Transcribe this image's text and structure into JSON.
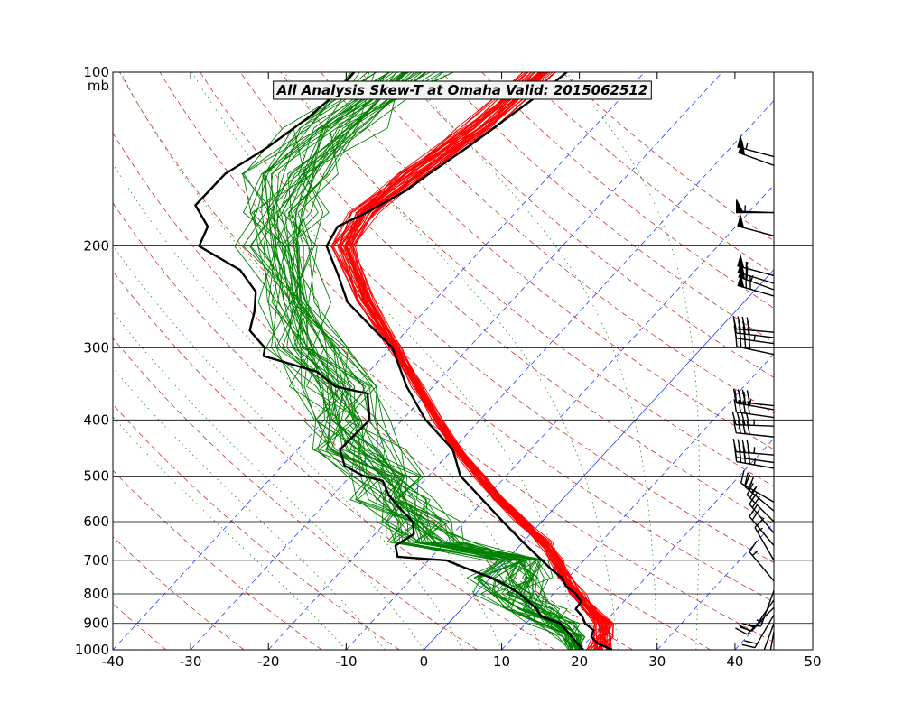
{
  "chart_data": {
    "type": "skew-t",
    "title": "All Analysis  Skew-T at Omaha   Valid: 2015062512",
    "pressure_unit_label": "mb",
    "x_ticks": [
      -40,
      -30,
      -20,
      -10,
      0,
      10,
      20,
      30,
      40,
      50
    ],
    "xlim": [
      -40,
      50
    ],
    "pressure_ticks": [
      100,
      200,
      300,
      400,
      500,
      600,
      700,
      800,
      900,
      1000
    ],
    "ylim_mb": [
      1000,
      100
    ],
    "isotherms_deg": [
      -40,
      -30,
      -20,
      -10,
      0,
      10,
      20,
      30,
      40
    ],
    "dry_adiabat_theta_K": [
      230,
      240,
      250,
      260,
      270,
      280,
      290,
      300,
      310,
      320,
      330,
      340,
      350,
      360,
      370,
      380,
      390,
      400,
      410,
      420,
      430
    ],
    "moist_adiabat_start_C": [
      -10,
      -5,
      0,
      5,
      10,
      15,
      20,
      25,
      30,
      35
    ],
    "series": [
      {
        "name": "analysis temperature (black)",
        "color": "#000000",
        "p": [
          1000,
          975,
          950,
          925,
          900,
          875,
          850,
          825,
          800,
          775,
          750,
          725,
          700,
          650,
          600,
          550,
          500,
          450,
          400,
          350,
          300,
          275,
          250,
          225,
          200,
          185,
          175,
          160,
          150,
          135,
          125,
          110,
          100
        ],
        "t": [
          24.2,
          21.6,
          20.0,
          19.5,
          17.6,
          16.4,
          14.7,
          14.5,
          12.9,
          10.7,
          9.2,
          6.8,
          4.6,
          -0.1,
          -5.0,
          -10.2,
          -15.9,
          -20.0,
          -27.0,
          -33.4,
          -39.8,
          -45.2,
          -51.0,
          -55.3,
          -60.3,
          -61.2,
          -59.1,
          -56.6,
          -55.7,
          -53.9,
          -52.8,
          -51.0,
          -50.0
        ]
      },
      {
        "name": "analysis dewpoint (black)",
        "color": "#000000",
        "p": [
          1000,
          975,
          950,
          925,
          900,
          875,
          850,
          800,
          775,
          750,
          720,
          700,
          690,
          660,
          630,
          600,
          560,
          540,
          510,
          500,
          480,
          450,
          400,
          360,
          350,
          330,
          310,
          300,
          280,
          260,
          240,
          220,
          200,
          185,
          170,
          150,
          135,
          120,
          110,
          100
        ],
        "t": [
          20.5,
          19.0,
          17.5,
          16.0,
          14.4,
          11.1,
          9.7,
          5.7,
          3.2,
          0.1,
          -4.6,
          -7.7,
          -14.4,
          -16.0,
          -15.0,
          -16.6,
          -20.8,
          -22.8,
          -25.3,
          -28.4,
          -32.0,
          -34.5,
          -34.2,
          -37.6,
          -42.6,
          -46.7,
          -55.4,
          -56.2,
          -60.2,
          -61.8,
          -64.0,
          -68.6,
          -76.7,
          -77.9,
          -82.0,
          -81.9,
          -79.6,
          -77.9,
          -77.2,
          -77.4
        ]
      },
      {
        "name": "ensemble temperature (red)",
        "color": "#ff0000",
        "members": 40,
        "p": [
          1000,
          950,
          900,
          850,
          800,
          750,
          700,
          650,
          600,
          550,
          500,
          450,
          400,
          350,
          300,
          250,
          200,
          175,
          150,
          125,
          100
        ],
        "t_mean": [
          22.5,
          21.5,
          20.0,
          16.5,
          13.0,
          9.5,
          6.5,
          2.5,
          -2.5,
          -8.0,
          -13.5,
          -19.5,
          -25.5,
          -32.0,
          -39.5,
          -48.5,
          -58.0,
          -59.5,
          -57.5,
          -55.0,
          -53.0
        ],
        "t_spread": [
          1.5,
          1.0,
          1.0,
          0.8,
          0.8,
          0.8,
          0.8,
          0.8,
          0.7,
          0.6,
          0.6,
          0.6,
          0.6,
          0.6,
          0.7,
          0.9,
          1.3,
          1.5,
          1.6,
          1.8,
          2.0
        ]
      },
      {
        "name": "ensemble dewpoint (green)",
        "color": "#008000",
        "members": 40,
        "p": [
          1000,
          950,
          900,
          850,
          800,
          750,
          700,
          650,
          600,
          550,
          500,
          450,
          400,
          350,
          300,
          250,
          200,
          175,
          150,
          125,
          100
        ],
        "t_mean": [
          19.5,
          17.5,
          14.0,
          9.0,
          5.0,
          3.0,
          2.0,
          -12.0,
          -16.0,
          -21.0,
          -25.0,
          -32.0,
          -37.0,
          -42.0,
          -50.0,
          -58.0,
          -66.0,
          -70.0,
          -73.0,
          -73.0,
          -71.0
        ],
        "t_spread": [
          0.8,
          1.5,
          2.5,
          3.0,
          3.5,
          4.5,
          3.0,
          4.5,
          4.0,
          4.0,
          4.0,
          4.5,
          4.5,
          4.5,
          4.0,
          4.0,
          4.0,
          4.5,
          5.0,
          5.0,
          5.0
        ]
      }
    ],
    "wind_barbs_ensemble": [
      {
        "p": 140,
        "dir": 285,
        "spd_kt": 55
      },
      {
        "p": 145,
        "dir": 290,
        "spd_kt": 52
      },
      {
        "p": 175,
        "dir": 270,
        "spd_kt": 50
      },
      {
        "p": 175,
        "dir": 272,
        "spd_kt": 55
      },
      {
        "p": 192,
        "dir": 285,
        "spd_kt": 52
      },
      {
        "p": 225,
        "dir": 285,
        "spd_kt": 55
      },
      {
        "p": 232,
        "dir": 287,
        "spd_kt": 60
      },
      {
        "p": 238,
        "dir": 290,
        "spd_kt": 65
      },
      {
        "p": 244,
        "dir": 286,
        "spd_kt": 70
      },
      {
        "p": 282,
        "dir": 275,
        "spd_kt": 40
      },
      {
        "p": 288,
        "dir": 277,
        "spd_kt": 40
      },
      {
        "p": 295,
        "dir": 278,
        "spd_kt": 45
      },
      {
        "p": 308,
        "dir": 282,
        "spd_kt": 40
      },
      {
        "p": 378,
        "dir": 276,
        "spd_kt": 40
      },
      {
        "p": 384,
        "dir": 280,
        "spd_kt": 35
      },
      {
        "p": 396,
        "dir": 278,
        "spd_kt": 40
      },
      {
        "p": 410,
        "dir": 272,
        "spd_kt": 45
      },
      {
        "p": 428,
        "dir": 276,
        "spd_kt": 40
      },
      {
        "p": 460,
        "dir": 275,
        "spd_kt": 45
      },
      {
        "p": 474,
        "dir": 278,
        "spd_kt": 40
      },
      {
        "p": 485,
        "dir": 280,
        "spd_kt": 45
      },
      {
        "p": 555,
        "dir": 300,
        "spd_kt": 25
      },
      {
        "p": 575,
        "dir": 310,
        "spd_kt": 25
      },
      {
        "p": 600,
        "dir": 315,
        "spd_kt": 20
      },
      {
        "p": 628,
        "dir": 320,
        "spd_kt": 20
      },
      {
        "p": 660,
        "dir": 320,
        "spd_kt": 20
      },
      {
        "p": 700,
        "dir": 330,
        "spd_kt": 15
      },
      {
        "p": 760,
        "dir": 320,
        "spd_kt": 15
      },
      {
        "p": 790,
        "dir": 200,
        "spd_kt": 15
      },
      {
        "p": 820,
        "dir": 215,
        "spd_kt": 20
      },
      {
        "p": 845,
        "dir": 225,
        "spd_kt": 25
      },
      {
        "p": 870,
        "dir": 210,
        "spd_kt": 20
      },
      {
        "p": 900,
        "dir": 200,
        "spd_kt": 15
      },
      {
        "p": 930,
        "dir": 190,
        "spd_kt": 10
      }
    ]
  }
}
